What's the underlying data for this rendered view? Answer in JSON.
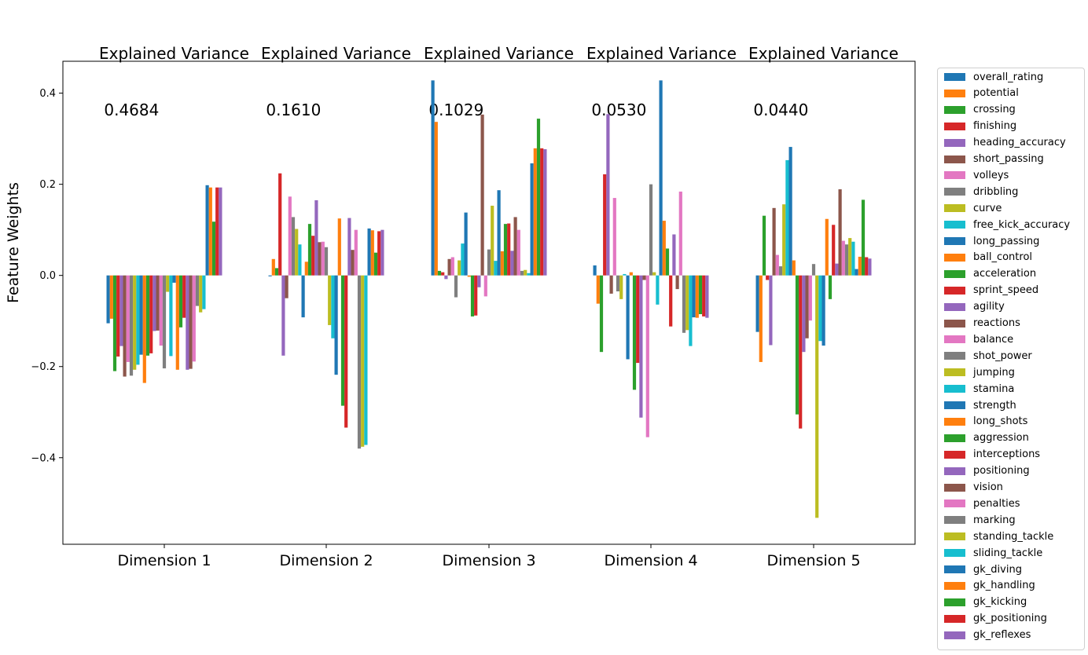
{
  "titles": [
    {
      "line1": "Explained Variance",
      "line2": " 0.4684"
    },
    {
      "line1": "Explained Variance",
      "line2": " 0.1610"
    },
    {
      "line1": "Explained Variance",
      "line2": " 0.1029"
    },
    {
      "line1": "Explained Variance",
      "line2": " 0.0530"
    },
    {
      "line1": "Explained Variance",
      "line2": " 0.0440"
    }
  ],
  "chart_data": {
    "type": "bar",
    "ylabel": "Feature Weights",
    "xlabel": "",
    "ylim": [
      -0.59,
      0.47
    ],
    "yticks": [
      -0.4,
      -0.2,
      0.0,
      0.2,
      0.4
    ],
    "ytick_labels": [
      "−0.4",
      "−0.2",
      "0.0",
      "0.2",
      "0.4"
    ],
    "categories": [
      "Dimension 1",
      "Dimension 2",
      "Dimension 3",
      "Dimension 4",
      "Dimension 5"
    ],
    "legend_position": "outside-right",
    "grid": false,
    "series": [
      {
        "name": "overall_rating",
        "color": "#1f77b4",
        "values": [
          -0.105,
          -0.002,
          0.428,
          0.022,
          -0.124
        ]
      },
      {
        "name": "potential",
        "color": "#ff7f0e",
        "values": [
          -0.095,
          0.036,
          0.337,
          -0.062,
          -0.19
        ]
      },
      {
        "name": "crossing",
        "color": "#2ca02c",
        "values": [
          -0.21,
          0.016,
          0.01,
          -0.168,
          0.131
        ]
      },
      {
        "name": "finishing",
        "color": "#d62728",
        "values": [
          -0.178,
          0.224,
          0.007,
          0.222,
          -0.01
        ]
      },
      {
        "name": "heading_accuracy",
        "color": "#9467bd",
        "values": [
          -0.155,
          -0.176,
          -0.008,
          0.354,
          -0.153
        ]
      },
      {
        "name": "short_passing",
        "color": "#8c564b",
        "values": [
          -0.222,
          -0.05,
          0.036,
          -0.04,
          0.148
        ]
      },
      {
        "name": "volleys",
        "color": "#e377c2",
        "values": [
          -0.19,
          0.173,
          0.04,
          0.17,
          0.045
        ]
      },
      {
        "name": "dribbling",
        "color": "#7f7f7f",
        "values": [
          -0.22,
          0.128,
          -0.048,
          -0.035,
          0.02
        ]
      },
      {
        "name": "curve",
        "color": "#bcbd22",
        "values": [
          -0.207,
          0.102,
          0.033,
          -0.052,
          0.156
        ]
      },
      {
        "name": "free_kick_accuracy",
        "color": "#17becf",
        "values": [
          -0.196,
          0.068,
          0.07,
          0.003,
          0.253
        ]
      },
      {
        "name": "long_passing",
        "color": "#1f77b4",
        "values": [
          -0.174,
          -0.092,
          0.138,
          -0.184,
          0.282
        ]
      },
      {
        "name": "ball_control",
        "color": "#ff7f0e",
        "values": [
          -0.236,
          0.03,
          -0.003,
          0.007,
          0.033
        ]
      },
      {
        "name": "acceleration",
        "color": "#2ca02c",
        "values": [
          -0.176,
          0.113,
          -0.09,
          -0.251,
          -0.305
        ]
      },
      {
        "name": "sprint_speed",
        "color": "#d62728",
        "values": [
          -0.171,
          0.087,
          -0.088,
          -0.192,
          -0.336
        ]
      },
      {
        "name": "agility",
        "color": "#9467bd",
        "values": [
          -0.122,
          0.165,
          -0.026,
          -0.312,
          -0.168
        ]
      },
      {
        "name": "reactions",
        "color": "#8c564b",
        "values": [
          -0.121,
          0.073,
          0.353,
          -0.01,
          -0.138
        ]
      },
      {
        "name": "balance",
        "color": "#e377c2",
        "values": [
          -0.154,
          0.074,
          -0.046,
          -0.355,
          -0.099
        ]
      },
      {
        "name": "shot_power",
        "color": "#7f7f7f",
        "values": [
          -0.204,
          0.062,
          0.057,
          0.2,
          0.025
        ]
      },
      {
        "name": "jumping",
        "color": "#bcbd22",
        "values": [
          -0.036,
          -0.109,
          0.153,
          0.007,
          -0.532
        ]
      },
      {
        "name": "stamina",
        "color": "#17becf",
        "values": [
          -0.177,
          -0.138,
          0.032,
          -0.064,
          -0.144
        ]
      },
      {
        "name": "strength",
        "color": "#1f77b4",
        "values": [
          -0.016,
          -0.218,
          0.187,
          0.428,
          -0.154
        ]
      },
      {
        "name": "long_shots",
        "color": "#ff7f0e",
        "values": [
          -0.207,
          0.125,
          0.053,
          0.12,
          0.124
        ]
      },
      {
        "name": "aggression",
        "color": "#2ca02c",
        "values": [
          -0.114,
          -0.286,
          0.113,
          0.059,
          -0.052
        ]
      },
      {
        "name": "interceptions",
        "color": "#d62728",
        "values": [
          -0.093,
          -0.334,
          0.114,
          -0.112,
          0.111
        ]
      },
      {
        "name": "positioning",
        "color": "#9467bd",
        "values": [
          -0.207,
          0.126,
          0.054,
          0.09,
          0.026
        ]
      },
      {
        "name": "vision",
        "color": "#8c564b",
        "values": [
          -0.205,
          0.056,
          0.128,
          -0.03,
          0.189
        ]
      },
      {
        "name": "penalties",
        "color": "#e377c2",
        "values": [
          -0.189,
          0.1,
          0.1,
          0.184,
          0.076
        ]
      },
      {
        "name": "marking",
        "color": "#7f7f7f",
        "values": [
          -0.067,
          -0.38,
          0.01,
          -0.126,
          0.068
        ]
      },
      {
        "name": "standing_tackle",
        "color": "#bcbd22",
        "values": [
          -0.081,
          -0.376,
          0.012,
          -0.12,
          0.082
        ]
      },
      {
        "name": "sliding_tackle",
        "color": "#17becf",
        "values": [
          -0.074,
          -0.372,
          0.005,
          -0.155,
          0.074
        ]
      },
      {
        "name": "gk_diving",
        "color": "#1f77b4",
        "values": [
          0.198,
          0.103,
          0.246,
          -0.092,
          0.014
        ]
      },
      {
        "name": "gk_handling",
        "color": "#ff7f0e",
        "values": [
          0.193,
          0.099,
          0.279,
          -0.093,
          0.041
        ]
      },
      {
        "name": "gk_kicking",
        "color": "#2ca02c",
        "values": [
          0.118,
          0.05,
          0.344,
          -0.085,
          0.166
        ]
      },
      {
        "name": "gk_positioning",
        "color": "#d62728",
        "values": [
          0.193,
          0.097,
          0.279,
          -0.09,
          0.04
        ]
      },
      {
        "name": "gk_reflexes",
        "color": "#9467bd",
        "values": [
          0.193,
          0.1,
          0.277,
          -0.093,
          0.037
        ]
      }
    ]
  }
}
